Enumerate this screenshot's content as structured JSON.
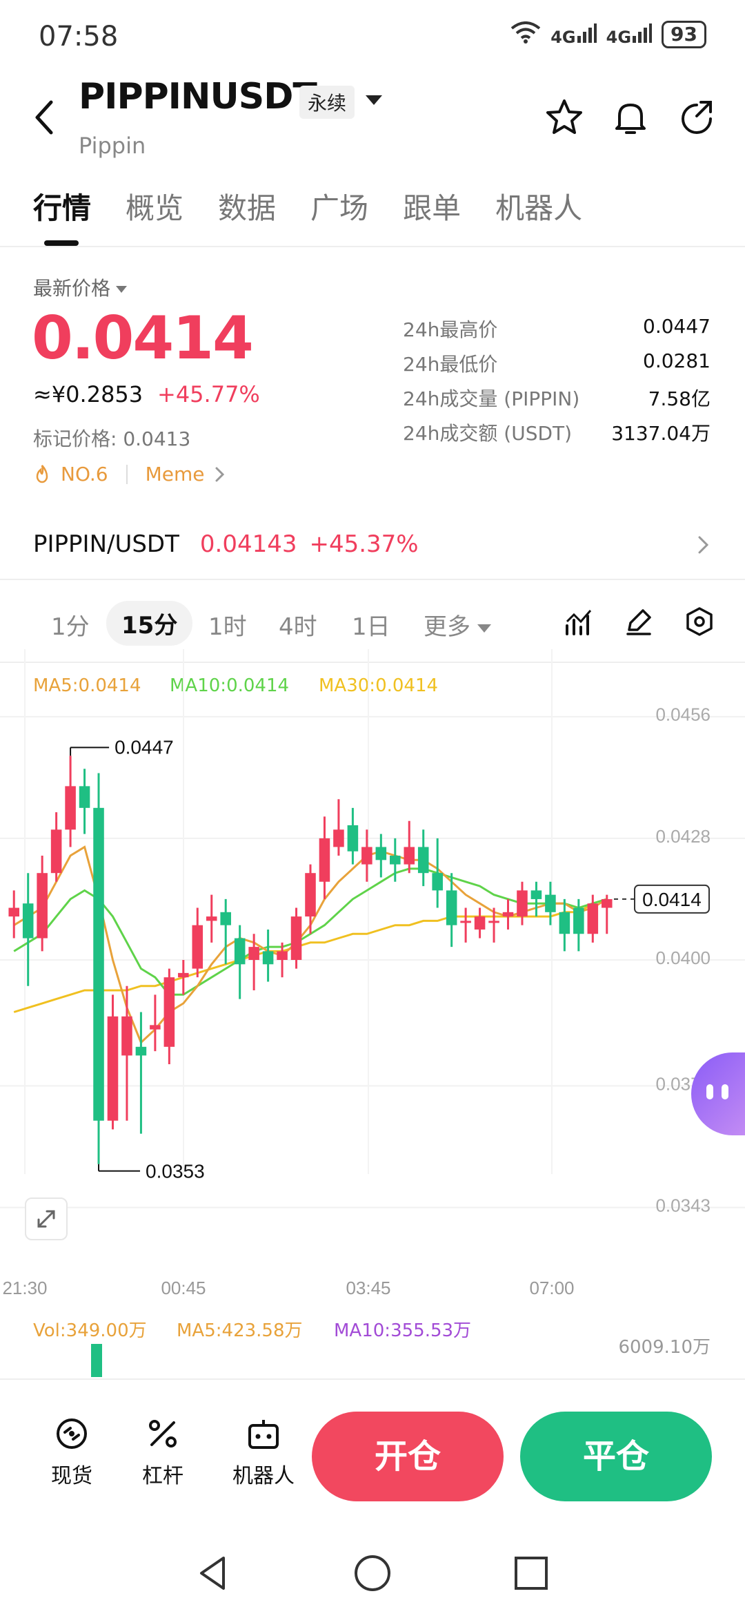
{
  "status": {
    "time": "07:58",
    "battery": "93",
    "net1": "4G",
    "net2": "4G"
  },
  "header": {
    "symbol": "PIPPINUSDT",
    "contract_type": "永续",
    "name": "Pippin"
  },
  "tabs": [
    "行情",
    "概览",
    "数据",
    "广场",
    "跟单",
    "机器人"
  ],
  "price": {
    "label": "最新价格",
    "last": "0.0414",
    "cny": "≈¥0.2853",
    "change": "+45.77%",
    "mark": "标记价格: 0.0413",
    "rank": "NO.6",
    "category": "Meme"
  },
  "stats": [
    {
      "label": "24h最高价",
      "value": "0.0447"
    },
    {
      "label": "24h最低价",
      "value": "0.0281"
    },
    {
      "label": "24h成交量 (PIPPIN)",
      "value": "7.58亿"
    },
    {
      "label": "24h成交额 (USDT)",
      "value": "3137.04万"
    }
  ],
  "spot_pair": {
    "name": "PIPPIN/USDT",
    "price": "0.04143",
    "change": "+45.37%"
  },
  "intervals": [
    "1分",
    "15分",
    "1时",
    "4时",
    "1日",
    "更多"
  ],
  "ma_legend": {
    "ma5": "MA5:0.0414",
    "ma10": "MA10:0.0414",
    "ma30": "MA30:0.0414"
  },
  "chart_data": {
    "type": "candlestick",
    "y_ticks": [
      "0.0456",
      "0.0428",
      "0.0400",
      "0.0371",
      "0.0343"
    ],
    "x_ticks": [
      "21:30",
      "00:45",
      "03:45",
      "07:00"
    ],
    "high_label": "0.0447",
    "low_label": "0.0353",
    "current_label": "0.0414",
    "candles": [
      {
        "o": 0.041,
        "c": 0.0412,
        "h": 0.0416,
        "l": 0.0405
      },
      {
        "o": 0.0413,
        "c": 0.0405,
        "h": 0.042,
        "l": 0.0394
      },
      {
        "o": 0.0405,
        "c": 0.042,
        "h": 0.0424,
        "l": 0.0402
      },
      {
        "o": 0.042,
        "c": 0.043,
        "h": 0.0434,
        "l": 0.0418
      },
      {
        "o": 0.043,
        "c": 0.044,
        "h": 0.0447,
        "l": 0.0426
      },
      {
        "o": 0.044,
        "c": 0.0435,
        "h": 0.0444,
        "l": 0.0429
      },
      {
        "o": 0.0435,
        "c": 0.0363,
        "h": 0.0443,
        "l": 0.0353
      },
      {
        "o": 0.0363,
        "c": 0.0387,
        "h": 0.0392,
        "l": 0.0361
      },
      {
        "o": 0.0378,
        "c": 0.0387,
        "h": 0.0394,
        "l": 0.0363
      },
      {
        "o": 0.038,
        "c": 0.0378,
        "h": 0.0388,
        "l": 0.036
      },
      {
        "o": 0.0384,
        "c": 0.0385,
        "h": 0.0392,
        "l": 0.0379
      },
      {
        "o": 0.038,
        "c": 0.0396,
        "h": 0.0398,
        "l": 0.0376
      },
      {
        "o": 0.0396,
        "c": 0.0397,
        "h": 0.04,
        "l": 0.0392
      },
      {
        "o": 0.0398,
        "c": 0.0408,
        "h": 0.0412,
        "l": 0.0396
      },
      {
        "o": 0.0409,
        "c": 0.041,
        "h": 0.0415,
        "l": 0.0404
      },
      {
        "o": 0.0411,
        "c": 0.0408,
        "h": 0.0414,
        "l": 0.0399
      },
      {
        "o": 0.0405,
        "c": 0.0399,
        "h": 0.0408,
        "l": 0.0391
      },
      {
        "o": 0.04,
        "c": 0.0403,
        "h": 0.0406,
        "l": 0.0393
      },
      {
        "o": 0.0402,
        "c": 0.0399,
        "h": 0.0407,
        "l": 0.0395
      },
      {
        "o": 0.04,
        "c": 0.0402,
        "h": 0.0404,
        "l": 0.0396
      },
      {
        "o": 0.04,
        "c": 0.041,
        "h": 0.0412,
        "l": 0.0398
      },
      {
        "o": 0.041,
        "c": 0.042,
        "h": 0.0422,
        "l": 0.0406
      },
      {
        "o": 0.0418,
        "c": 0.0428,
        "h": 0.0433,
        "l": 0.0414
      },
      {
        "o": 0.0426,
        "c": 0.043,
        "h": 0.0437,
        "l": 0.0424
      },
      {
        "o": 0.0431,
        "c": 0.0425,
        "h": 0.0435,
        "l": 0.0422
      },
      {
        "o": 0.0422,
        "c": 0.0426,
        "h": 0.043,
        "l": 0.0418
      },
      {
        "o": 0.0426,
        "c": 0.0423,
        "h": 0.0429,
        "l": 0.0419
      },
      {
        "o": 0.0424,
        "c": 0.0422,
        "h": 0.0428,
        "l": 0.0418
      },
      {
        "o": 0.0422,
        "c": 0.0426,
        "h": 0.0432,
        "l": 0.042
      },
      {
        "o": 0.0426,
        "c": 0.042,
        "h": 0.043,
        "l": 0.0417
      },
      {
        "o": 0.042,
        "c": 0.0416,
        "h": 0.0428,
        "l": 0.0412
      },
      {
        "o": 0.0416,
        "c": 0.0408,
        "h": 0.042,
        "l": 0.0403
      },
      {
        "o": 0.0409,
        "c": 0.0409,
        "h": 0.0412,
        "l": 0.0404
      },
      {
        "o": 0.0407,
        "c": 0.041,
        "h": 0.0412,
        "l": 0.0405
      },
      {
        "o": 0.0409,
        "c": 0.0409,
        "h": 0.0412,
        "l": 0.0404
      },
      {
        "o": 0.041,
        "c": 0.0411,
        "h": 0.0414,
        "l": 0.0407
      },
      {
        "o": 0.041,
        "c": 0.0416,
        "h": 0.0418,
        "l": 0.0408
      },
      {
        "o": 0.0416,
        "c": 0.0414,
        "h": 0.0418,
        "l": 0.041
      },
      {
        "o": 0.0415,
        "c": 0.0411,
        "h": 0.0418,
        "l": 0.0408
      },
      {
        "o": 0.0411,
        "c": 0.0406,
        "h": 0.0414,
        "l": 0.0402
      },
      {
        "o": 0.0412,
        "c": 0.0406,
        "h": 0.0414,
        "l": 0.0402
      },
      {
        "o": 0.0406,
        "c": 0.0413,
        "h": 0.0415,
        "l": 0.0404
      },
      {
        "o": 0.0412,
        "c": 0.0414,
        "h": 0.0415,
        "l": 0.0406
      }
    ],
    "ma5": [
      0.0408,
      0.041,
      0.0412,
      0.0418,
      0.0424,
      0.0426,
      0.0414,
      0.04,
      0.0389,
      0.0381,
      0.0384,
      0.0388,
      0.039,
      0.0394,
      0.0399,
      0.0403,
      0.0405,
      0.0404,
      0.0402,
      0.0401,
      0.0404,
      0.0408,
      0.0414,
      0.0418,
      0.0421,
      0.0424,
      0.0425,
      0.0424,
      0.0423,
      0.0423,
      0.0421,
      0.0418,
      0.0415,
      0.0413,
      0.0411,
      0.041,
      0.0411,
      0.0412,
      0.0413,
      0.0413,
      0.0411,
      0.0412,
      0.0414
    ],
    "ma10": [
      0.0402,
      0.0404,
      0.0406,
      0.041,
      0.0414,
      0.0416,
      0.0414,
      0.041,
      0.0404,
      0.0398,
      0.0396,
      0.0392,
      0.0392,
      0.0394,
      0.0396,
      0.0398,
      0.04,
      0.0402,
      0.0403,
      0.0403,
      0.0404,
      0.0406,
      0.0408,
      0.0411,
      0.0414,
      0.0416,
      0.0418,
      0.042,
      0.0421,
      0.0421,
      0.042,
      0.0419,
      0.0418,
      0.0417,
      0.0415,
      0.0414,
      0.0413,
      0.0413,
      0.0413,
      0.0413,
      0.0412,
      0.0413,
      0.0414
    ],
    "ma30": [
      0.0388,
      0.0389,
      0.039,
      0.0391,
      0.0392,
      0.0393,
      0.0393,
      0.0393,
      0.0393,
      0.0394,
      0.0394,
      0.0395,
      0.0396,
      0.0397,
      0.0398,
      0.0399,
      0.04,
      0.0401,
      0.0402,
      0.0402,
      0.0403,
      0.0404,
      0.0404,
      0.0405,
      0.0406,
      0.0406,
      0.0407,
      0.0408,
      0.0408,
      0.0409,
      0.0409,
      0.041,
      0.041,
      0.041,
      0.041,
      0.041,
      0.041,
      0.041,
      0.041,
      0.0411,
      0.0411,
      0.0413,
      0.0414
    ],
    "ylim": [
      0.0338,
      0.0462
    ]
  },
  "volume": {
    "vol": "Vol:349.00万",
    "ma5": "MA5:423.58万",
    "ma10": "MA10:355.53万",
    "axis_max": "6009.10万"
  },
  "bottom": {
    "spot": "现货",
    "leverage": "杠杆",
    "robot": "机器人",
    "open": "开仓",
    "close": "平仓"
  },
  "colors": {
    "up": "#f03e5d",
    "down": "#1fbf83",
    "ma5": "#e8a23a",
    "ma10": "#5fd34a",
    "ma30": "#f0c020",
    "ma_vol10": "#a24bd6"
  }
}
